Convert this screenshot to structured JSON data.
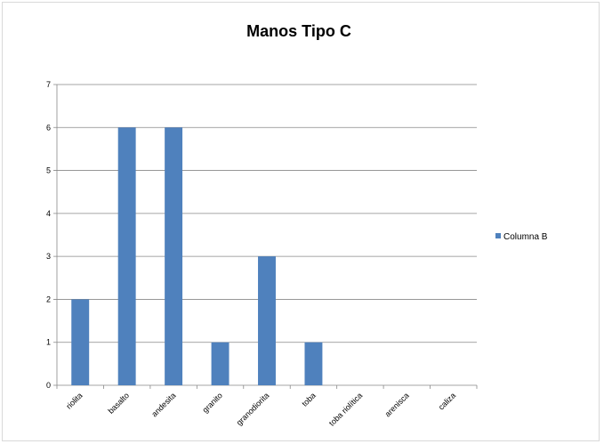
{
  "chart_data": {
    "type": "bar",
    "title": "Manos Tipo C",
    "xlabel": "",
    "ylabel": "",
    "categories": [
      "riolita",
      "basalto",
      "andesita",
      "granito",
      "granodiorita",
      "toba",
      "toba riolítica",
      "arenisca",
      "caliza"
    ],
    "series": [
      {
        "name": "Columna B",
        "values": [
          2,
          6,
          6,
          1,
          3,
          1,
          0,
          0,
          0
        ]
      }
    ],
    "ylim": [
      0,
      7
    ],
    "yticks": [
      0,
      1,
      2,
      3,
      4,
      5,
      6,
      7
    ],
    "grid": true,
    "legend_position": "right",
    "colors": {
      "bar": "#4f81bd",
      "grid": "#888888",
      "axis": "#888888"
    }
  }
}
